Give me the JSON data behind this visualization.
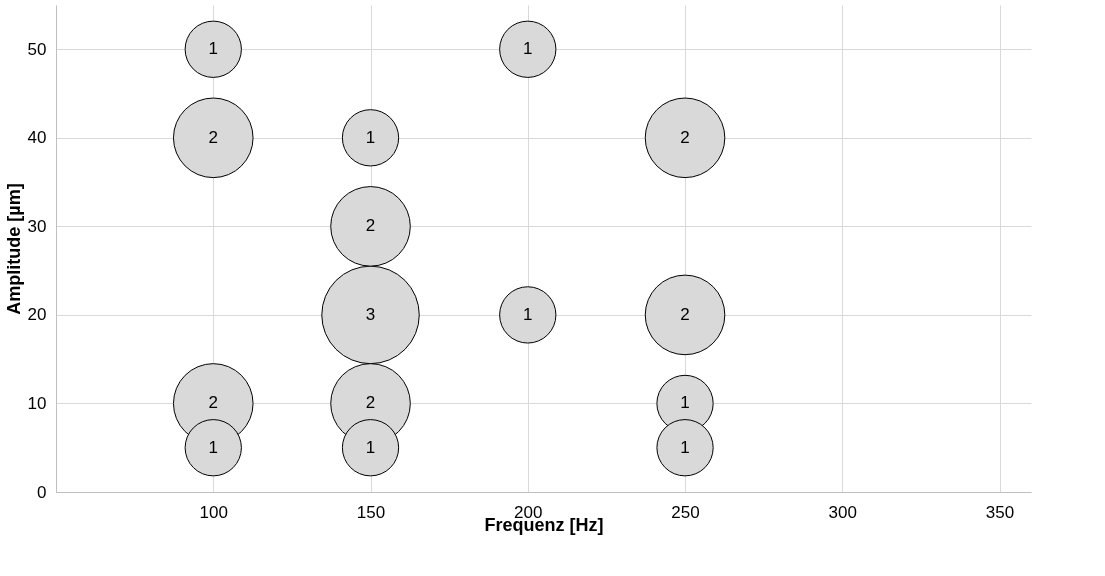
{
  "chart_data": {
    "type": "bubble",
    "xlabel": "Frequenz [Hz]",
    "ylabel": "Amplitude [µm]",
    "x": [
      100,
      200,
      100,
      150,
      250,
      150,
      150,
      200,
      250,
      100,
      150,
      250,
      100,
      150,
      250
    ],
    "values": [
      50,
      50,
      40,
      40,
      40,
      30,
      20,
      20,
      20,
      10,
      10,
      10,
      5,
      5,
      5
    ],
    "sizes": [
      1,
      1,
      2,
      1,
      2,
      2,
      3,
      1,
      2,
      2,
      2,
      1,
      1,
      1,
      1
    ],
    "value_labels": [
      "1",
      "1",
      "2",
      "1",
      "2",
      "2",
      "3",
      "1",
      "2",
      "2",
      "2",
      "1",
      "1",
      "1",
      "1"
    ],
    "color": "#d9d9d9",
    "grid": true,
    "xlim": [
      50,
      360
    ],
    "xticks": [
      100,
      150,
      200,
      250,
      300,
      350
    ],
    "ylim": [
      0,
      55
    ],
    "yticks": [
      0,
      10,
      20,
      30,
      40,
      50
    ]
  }
}
